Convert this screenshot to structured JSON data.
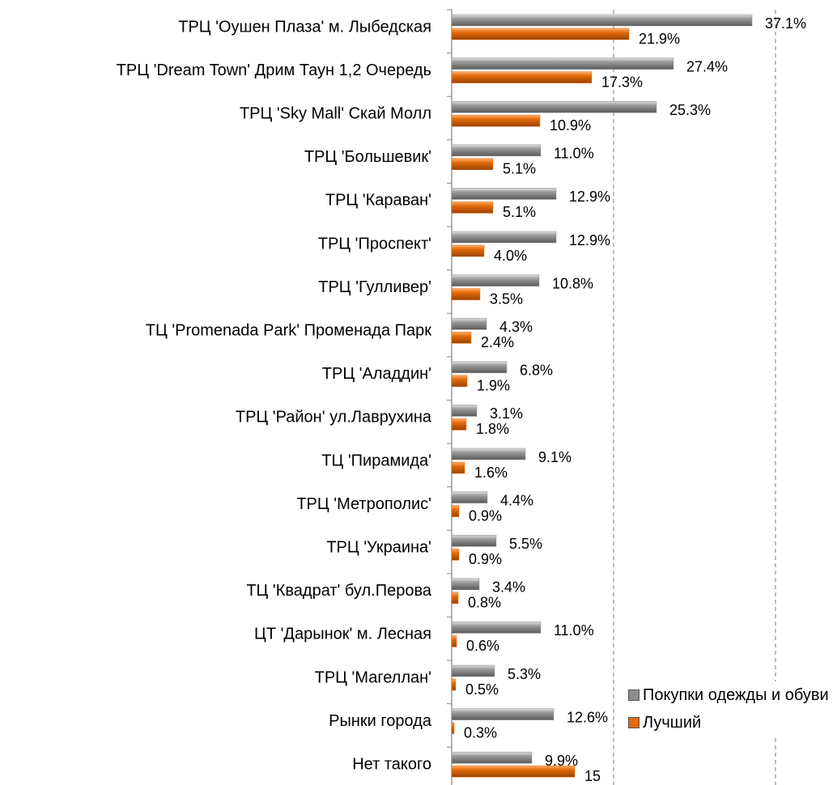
{
  "chart_data": {
    "type": "barh",
    "categories": [
      "ТРЦ 'Оушен Плаза' м. Лыбедская",
      "ТРЦ 'Dream Town' Дрим Таун 1,2 Очередь",
      "ТРЦ 'Sky Mall' Скай Молл",
      "ТРЦ 'Большевик'",
      "ТРЦ 'Караван'",
      "ТРЦ 'Проспект'",
      "ТРЦ 'Гулливер'",
      "ТЦ 'Promenada Park'  Променада Парк",
      "ТРЦ 'Аладдин'",
      "ТРЦ 'Район' ул.Лаврухина",
      "ТЦ 'Пирамида'",
      "ТРЦ 'Метрополис'",
      "ТРЦ 'Украина'",
      "ТЦ 'Квадрат' бул.Перова",
      "ЦТ 'Дарынок' м. Лесная",
      "ТРЦ 'Магеллан'",
      "Рынки города",
      "Нет такого"
    ],
    "series": [
      {
        "name": "Покупки одежды и обуви",
        "color": "#8c8c8c",
        "values": [
          37.1,
          27.4,
          25.3,
          11.0,
          12.9,
          12.9,
          10.8,
          4.3,
          6.8,
          3.1,
          9.1,
          4.4,
          5.5,
          3.4,
          11.0,
          5.3,
          12.6,
          9.9
        ],
        "value_labels": [
          "37.1%",
          "27.4%",
          "25.3%",
          "11.0%",
          "12.9%",
          "12.9%",
          "10.8%",
          "4.3%",
          "6.8%",
          "3.1%",
          "9.1%",
          "4.4%",
          "5.5%",
          "3.4%",
          "11.0%",
          "5.3%",
          "12.6%",
          "9.9%"
        ]
      },
      {
        "name": "Лучший",
        "color": "#e46c0a",
        "values": [
          21.9,
          17.3,
          10.9,
          5.1,
          5.1,
          4.0,
          3.5,
          2.4,
          1.9,
          1.8,
          1.6,
          0.9,
          0.9,
          0.8,
          0.6,
          0.5,
          0.3,
          15.2
        ],
        "value_labels": [
          "21.9%",
          "17.3%",
          "10.9%",
          "5.1%",
          "5.1%",
          "4.0%",
          "3.5%",
          "2.4%",
          "1.9%",
          "1.8%",
          "1.6%",
          "0.9%",
          "0.9%",
          "0.8%",
          "0.6%",
          "0.5%",
          "0.3%",
          "15"
        ]
      }
    ],
    "xlim": [
      0,
      40
    ],
    "xticks": [
      20,
      40
    ],
    "grid": true,
    "legend": "lower right"
  }
}
